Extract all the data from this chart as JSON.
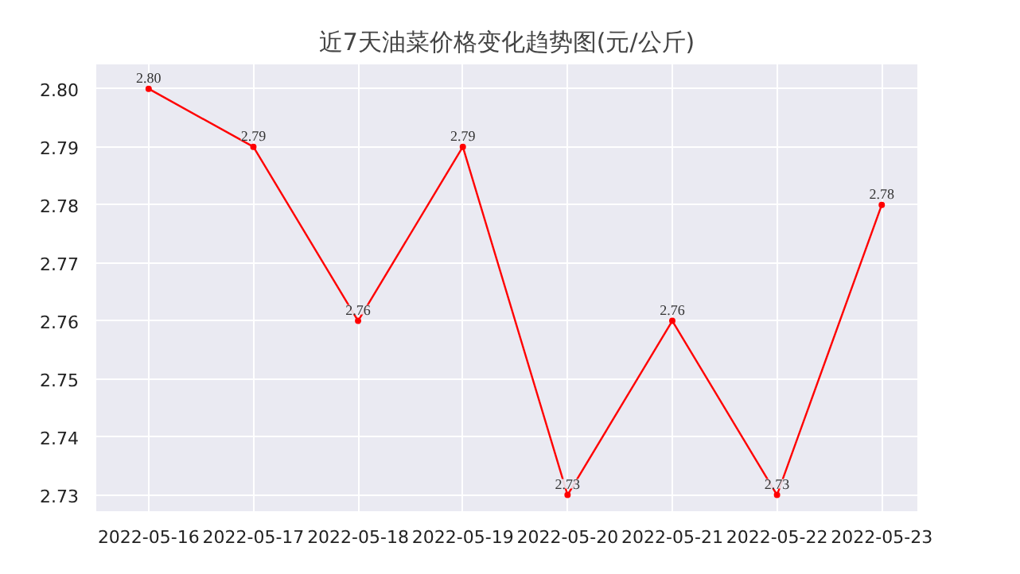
{
  "chart_data": {
    "type": "line",
    "title": "近7天油菜价格变化趋势图(元/公斤)",
    "categories": [
      "2022-05-16",
      "2022-05-17",
      "2022-05-18",
      "2022-05-19",
      "2022-05-20",
      "2022-05-21",
      "2022-05-22",
      "2022-05-23"
    ],
    "series": [
      {
        "color": "#ff0000",
        "values": [
          2.8,
          2.79,
          2.76,
          2.79,
          2.73,
          2.76,
          2.73,
          2.78
        ],
        "value_labels": [
          "2.80",
          "2.79",
          "2.76",
          "2.79",
          "2.73",
          "2.76",
          "2.73",
          "2.78"
        ]
      }
    ],
    "ylim": [
      2.7272,
      2.8042
    ],
    "yticks": [
      {
        "value": 2.73,
        "label": "2.73"
      },
      {
        "value": 2.74,
        "label": "2.74"
      },
      {
        "value": 2.75,
        "label": "2.75"
      },
      {
        "value": 2.76,
        "label": "2.76"
      },
      {
        "value": 2.77,
        "label": "2.77"
      },
      {
        "value": 2.78,
        "label": "2.78"
      },
      {
        "value": 2.79,
        "label": "2.79"
      },
      {
        "value": 2.8,
        "label": "2.80"
      }
    ],
    "grid": true,
    "marker": "circle",
    "line_style": "solid"
  }
}
